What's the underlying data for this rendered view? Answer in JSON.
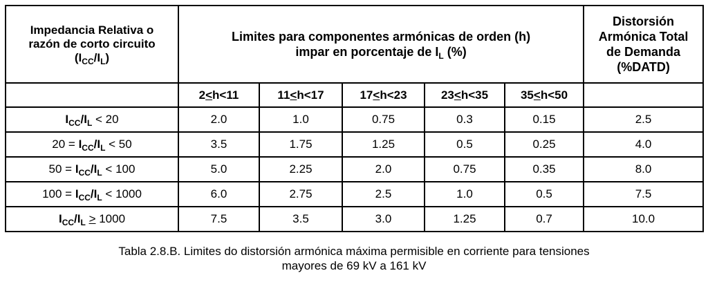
{
  "table": {
    "header": {
      "col1_line1": "Impedancia Relativa o",
      "col1_line2": "razón de corto circuito",
      "col1_line3_open": "(I",
      "col1_line3_sub1": "CC",
      "col1_line3_mid": "/I",
      "col1_line3_sub2": "L",
      "col1_line3_close": ")",
      "limits_line1": "Limites para componentes armónicas de orden (h)",
      "limits_line2_pre": "impar en porcentaje de I",
      "limits_line2_sub": "L",
      "limits_line2_post": " (%)",
      "last_line1": "Distorsión",
      "last_line2": "Armónica Total",
      "last_line3": "de Demanda",
      "last_line4": "(%DATD)"
    },
    "subheaders": [
      {
        "lo": "2",
        "le": "<",
        "rest": "h<11"
      },
      {
        "lo": "11",
        "le": "<",
        "rest": "h<17"
      },
      {
        "lo": "17",
        "le": "<",
        "rest": "h<23"
      },
      {
        "lo": "23",
        "le": "<",
        "rest": "h<35"
      },
      {
        "lo": "35",
        "le": "<",
        "rest": "h<50"
      }
    ],
    "rows": [
      {
        "pre": "",
        "sub1": "CC",
        "sub2": "L",
        "post": " < 20",
        "values": [
          "2.0",
          "1.0",
          "0.75",
          "0.3",
          "0.15",
          "2.5"
        ]
      },
      {
        "pre": "20 = ",
        "sub1": "CC",
        "sub2": "L",
        "post": " < 50",
        "values": [
          "3.5",
          "1.75",
          "1.25",
          "0.5",
          "0.25",
          "4.0"
        ]
      },
      {
        "pre": "50 = ",
        "sub1": "CC",
        "sub2": "L",
        "post": " < 100",
        "values": [
          "5.0",
          "2.25",
          "2.0",
          "0.75",
          "0.35",
          "8.0"
        ]
      },
      {
        "pre": "100 = ",
        "sub1": "CC",
        "sub2": "L",
        "post": " < 1000",
        "values": [
          "6.0",
          "2.75",
          "2.5",
          "1.0",
          "0.5",
          "7.5"
        ]
      },
      {
        "pre": "",
        "sub1": "CC",
        "sub2": "L",
        "post_ul": ">",
        "post": " 1000",
        "values": [
          "7.5",
          "3.5",
          "3.0",
          "1.25",
          "0.7",
          "10.0"
        ]
      }
    ]
  },
  "caption": {
    "line1": "Tabla 2.8.B. Limites do distorsión armónica máxima permisible en corriente para tensiones",
    "line2": "mayores de 69 kV a 161 kV"
  }
}
